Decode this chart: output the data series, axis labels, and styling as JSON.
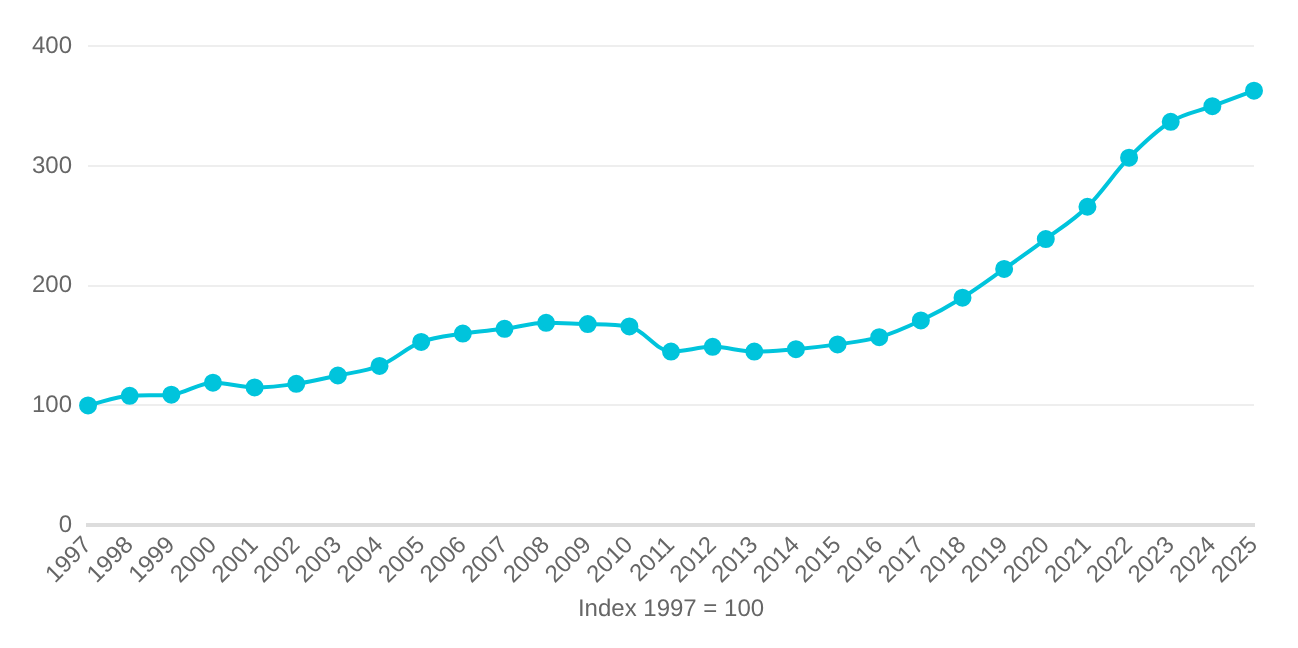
{
  "chart_data": {
    "type": "line",
    "xlabel": "Index 1997 = 100",
    "categories": [
      "1997",
      "1998",
      "1999",
      "2000",
      "2001",
      "2002",
      "2003",
      "2004",
      "2005",
      "2006",
      "2007",
      "2008",
      "2009",
      "2010",
      "2011",
      "2012",
      "2013",
      "2014",
      "2015",
      "2016",
      "2017",
      "2018",
      "2019",
      "2020",
      "2021",
      "2022",
      "2023",
      "2024",
      "2025"
    ],
    "series": [
      {
        "color": "#00c4dc",
        "values": [
          100,
          108,
          109,
          119,
          115,
          118,
          125,
          133,
          153,
          160,
          164,
          169,
          168,
          166,
          145,
          149,
          145,
          147,
          151,
          157,
          171,
          190,
          214,
          239,
          266,
          307,
          337,
          350,
          363
        ]
      }
    ],
    "ylim": [
      0,
      400
    ],
    "yticks": [
      0,
      100,
      200,
      300,
      400
    ],
    "grid": "y",
    "legend": false,
    "marker": "circle",
    "line_style": "solid"
  }
}
